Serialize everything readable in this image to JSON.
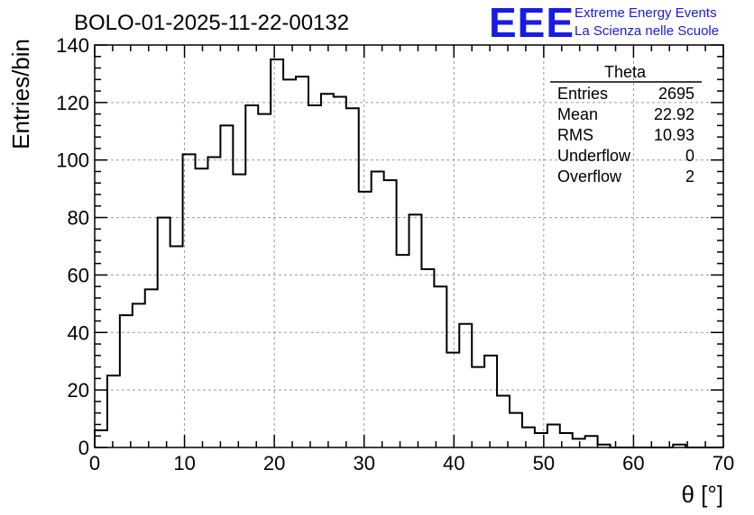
{
  "title": "BOLO-01-2025-11-22-00132",
  "logo": {
    "mark": "EEE",
    "line1": "Extreme Energy Events",
    "line2": "La Scienza nelle Scuole",
    "color": "#1a1ae6"
  },
  "stats": {
    "name": "Theta",
    "rows": [
      {
        "label": "Entries",
        "value": "2695"
      },
      {
        "label": "Mean",
        "value": "22.92"
      },
      {
        "label": "RMS",
        "value": "10.93"
      },
      {
        "label": "Underflow",
        "value": "0"
      },
      {
        "label": "Overflow",
        "value": "2"
      }
    ]
  },
  "chart_data": {
    "type": "bar",
    "style": "step-histogram",
    "xlabel": "θ [°]",
    "ylabel": "Entries/bin",
    "xlim": [
      0,
      70
    ],
    "ylim": [
      0,
      140
    ],
    "bin_width": 1.4,
    "x_ticks": [
      0,
      10,
      20,
      30,
      40,
      50,
      60,
      70
    ],
    "y_ticks": [
      0,
      20,
      40,
      60,
      80,
      100,
      120,
      140
    ],
    "grid": true,
    "values": [
      6,
      25,
      46,
      50,
      55,
      80,
      70,
      102,
      97,
      101,
      112,
      95,
      119,
      116,
      135,
      128,
      129,
      119,
      123,
      122,
      118,
      89,
      96,
      93,
      67,
      81,
      62,
      56,
      33,
      43,
      28,
      32,
      18,
      12,
      7,
      5,
      8,
      5,
      3,
      4,
      1,
      0,
      0,
      0,
      0,
      0,
      1,
      0,
      0,
      0
    ]
  }
}
